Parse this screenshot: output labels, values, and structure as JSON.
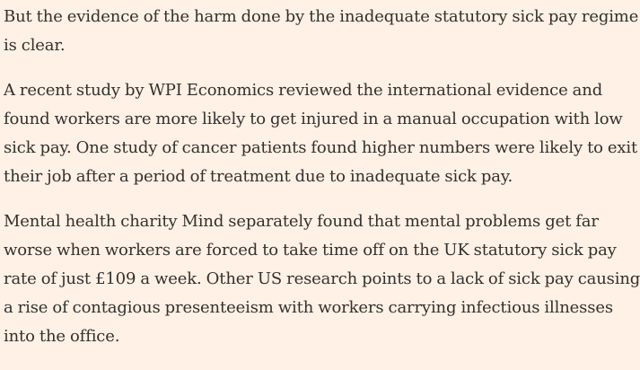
{
  "article": {
    "paragraphs": [
      {
        "lines": [
          "But the evidence of the harm done by the inadequate statutory sick pay regime",
          "is clear."
        ]
      },
      {
        "lines": [
          "A recent study by WPI Economics reviewed the international evidence and",
          "found workers are more likely to get injured in a manual occupation with low",
          "sick pay. One study of cancer patients found higher numbers were likely to exit",
          "their job after a period of treatment due to inadequate sick pay."
        ]
      },
      {
        "lines": [
          "Mental health charity Mind separately found that mental problems get far",
          "worse when workers are forced to take time off on the UK statutory sick pay",
          "rate of just £109 a week. Other US research points to a lack of sick pay causing",
          "a rise of contagious presenteeism with workers carrying infectious illnesses",
          "into the office."
        ]
      }
    ]
  }
}
